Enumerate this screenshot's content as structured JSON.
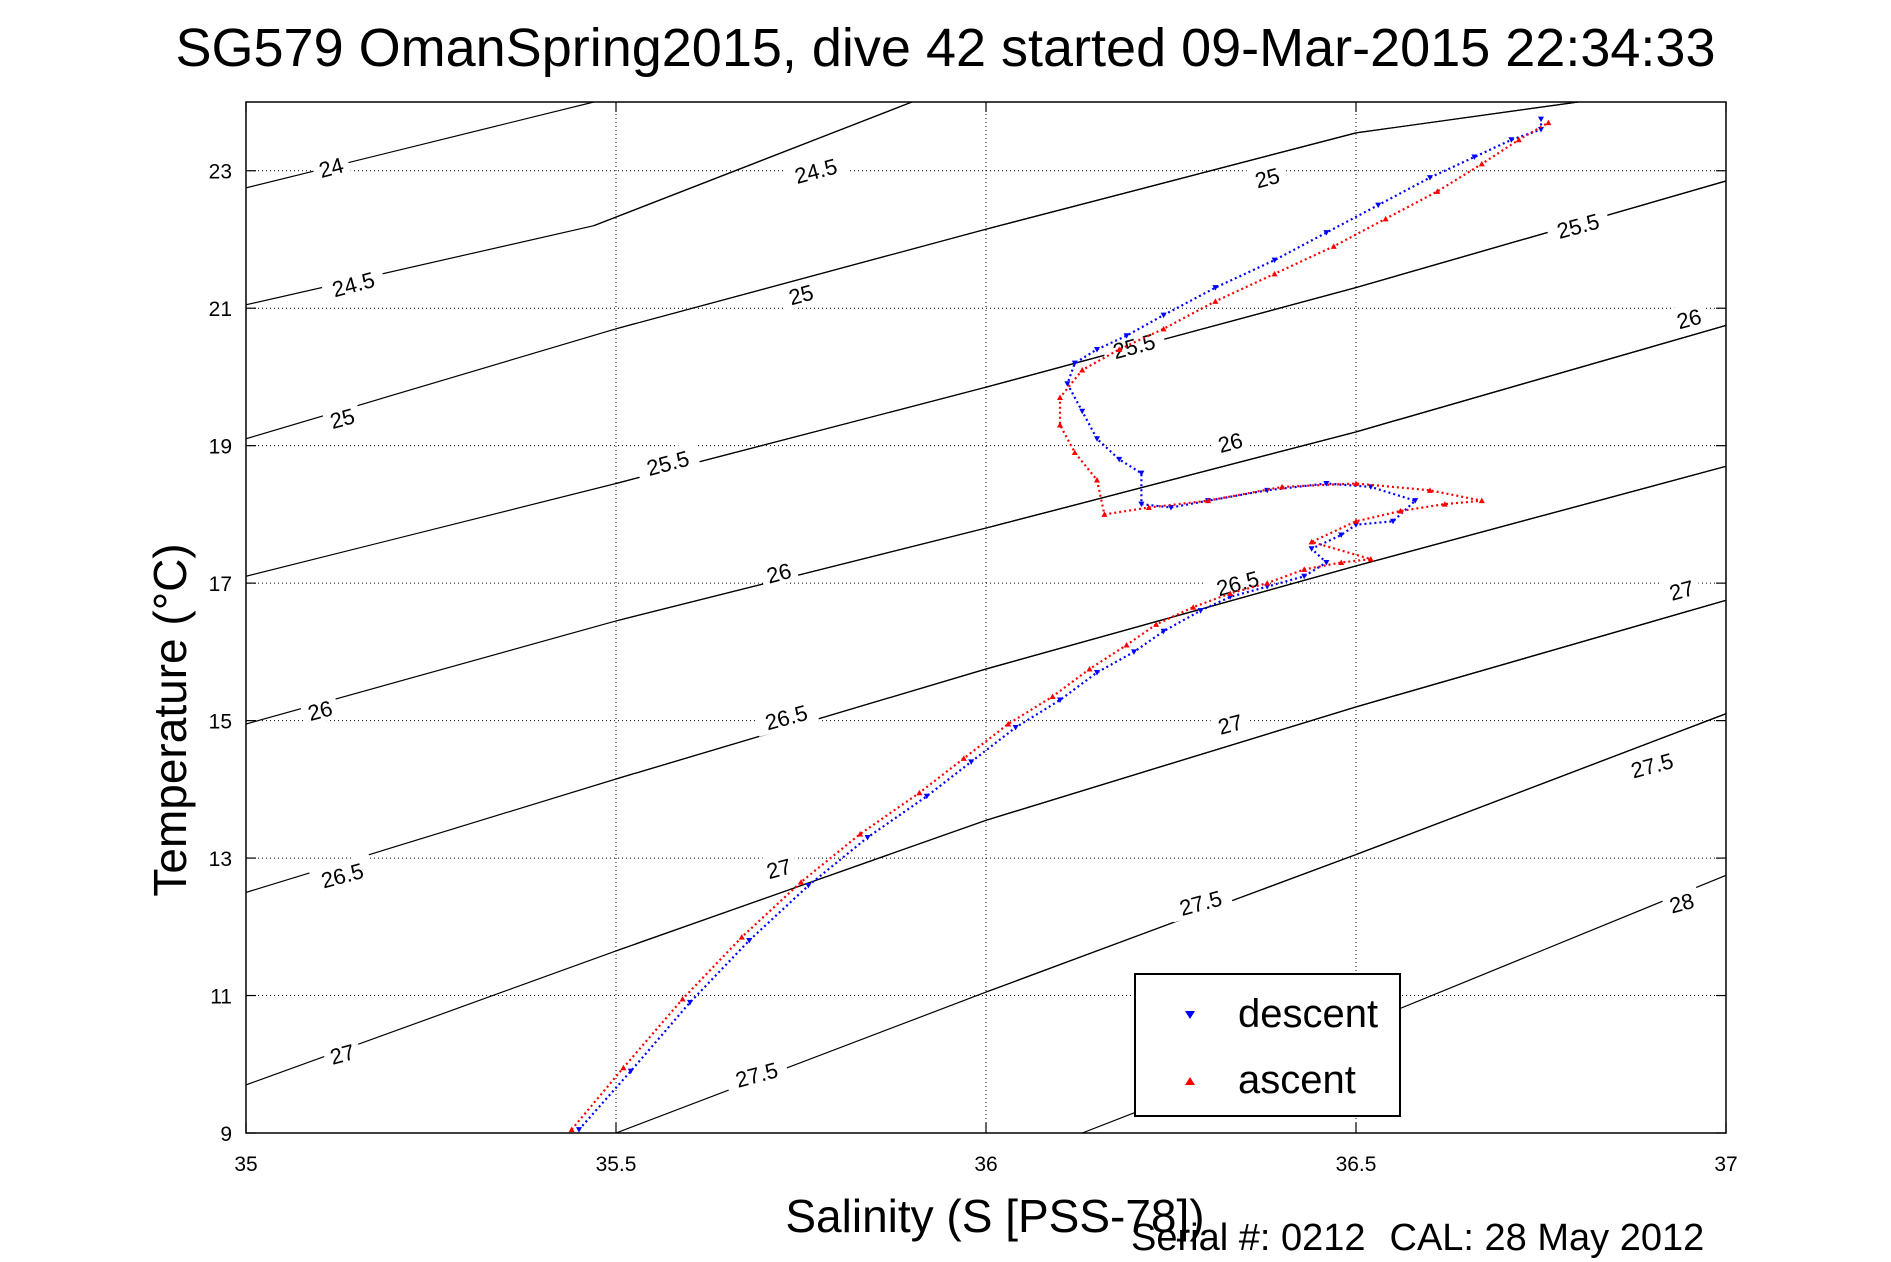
{
  "chart_data": {
    "type": "scatter",
    "title": "SG579 OmanSpring2015, dive 42 started 09-Mar-2015 22:34:33",
    "xlabel": "Salinity (S [PSS-78])",
    "ylabel": "Temperature (°C)",
    "xlim": [
      35,
      37
    ],
    "ylim": [
      9,
      24
    ],
    "x_ticks": [
      35,
      35.5,
      36,
      36.5,
      37
    ],
    "x_tick_labels": [
      "35",
      "35.5",
      "36",
      "36.5",
      "37"
    ],
    "y_ticks": [
      9,
      11,
      13,
      15,
      17,
      19,
      21,
      23
    ],
    "y_tick_labels": [
      "9",
      "11",
      "13",
      "15",
      "17",
      "19",
      "21",
      "23"
    ],
    "grid": true,
    "legend_position": "bottom-right",
    "series": [
      {
        "name": "descent",
        "color": "#0000ff",
        "marker": "triangle-down",
        "x": [
          35.45,
          35.52,
          35.6,
          35.68,
          35.76,
          35.84,
          35.92,
          35.98,
          36.04,
          36.1,
          36.15,
          36.2,
          36.24,
          36.29,
          36.33,
          36.38,
          36.43,
          36.46,
          36.44,
          36.48,
          36.5,
          36.55,
          36.58,
          36.52,
          36.46,
          36.38,
          36.3,
          36.25,
          36.21,
          36.21,
          36.18,
          36.15,
          36.13,
          36.11,
          36.12,
          36.15,
          36.19,
          36.24,
          36.31,
          36.39,
          36.46,
          36.53,
          36.6,
          36.66,
          36.71,
          36.75,
          36.75
        ],
        "y": [
          9.05,
          9.9,
          10.9,
          11.8,
          12.6,
          13.3,
          13.9,
          14.4,
          14.9,
          15.3,
          15.7,
          16.0,
          16.3,
          16.6,
          16.8,
          16.95,
          17.1,
          17.3,
          17.5,
          17.7,
          17.85,
          17.9,
          18.2,
          18.4,
          18.45,
          18.35,
          18.2,
          18.1,
          18.15,
          18.6,
          18.8,
          19.1,
          19.5,
          19.9,
          20.2,
          20.4,
          20.6,
          20.9,
          21.3,
          21.7,
          22.1,
          22.5,
          22.9,
          23.2,
          23.45,
          23.6,
          23.75
        ]
      },
      {
        "name": "ascent",
        "color": "#ff0000",
        "marker": "triangle-up",
        "x": [
          35.44,
          35.51,
          35.59,
          35.67,
          35.75,
          35.83,
          35.91,
          35.97,
          36.03,
          36.09,
          36.14,
          36.19,
          36.23,
          36.28,
          36.33,
          36.38,
          36.43,
          36.48,
          36.52,
          36.44,
          36.5,
          36.56,
          36.62,
          36.67,
          36.6,
          36.5,
          36.4,
          36.3,
          36.22,
          36.16,
          36.15,
          36.12,
          36.1,
          36.1,
          36.13,
          36.18,
          36.24,
          36.31,
          36.39,
          36.47,
          36.54,
          36.61,
          36.67,
          36.72,
          36.76
        ],
        "y": [
          9.05,
          9.95,
          10.95,
          11.85,
          12.65,
          13.35,
          13.95,
          14.45,
          14.95,
          15.35,
          15.75,
          16.1,
          16.4,
          16.65,
          16.85,
          17.0,
          17.2,
          17.3,
          17.35,
          17.6,
          17.9,
          18.05,
          18.15,
          18.2,
          18.35,
          18.45,
          18.4,
          18.2,
          18.1,
          18.0,
          18.5,
          18.9,
          19.3,
          19.7,
          20.1,
          20.4,
          20.7,
          21.1,
          21.5,
          21.9,
          22.3,
          22.7,
          23.1,
          23.45,
          23.7
        ]
      }
    ],
    "contours": [
      {
        "label": "24",
        "x": [
          35,
          35.47
        ],
        "y": [
          22.75,
          24.0
        ],
        "label_x": 35.115,
        "label_y": 23.05
      },
      {
        "label": "24.5",
        "x": [
          35,
          35.47,
          35.9
        ],
        "y": [
          21.05,
          22.2,
          24.0
        ],
        "label_x": 35.145,
        "label_y": 21.35
      },
      {
        "label": "24.5",
        "x": [
          35.47,
          35.9
        ],
        "y": [
          22.2,
          24.0
        ],
        "label_x": 35.77,
        "label_y": 23.0
      },
      {
        "label": "25",
        "x": [
          35,
          35.5,
          36,
          36.5
        ],
        "y": [
          19.1,
          20.7,
          22.15,
          23.55
        ],
        "label_x": 35.13,
        "label_y": 19.4
      },
      {
        "label": "25",
        "x": [
          35.5,
          36,
          36.5,
          36.8
        ],
        "y": [
          20.7,
          22.15,
          23.55,
          24.0
        ],
        "label_x": 35.75,
        "label_y": 21.2
      },
      {
        "label": "25",
        "x": [
          36,
          36.5,
          36.8
        ],
        "y": [
          22.15,
          23.55,
          24.0
        ],
        "label_x": 36.38,
        "label_y": 22.9
      },
      {
        "label": "25.5",
        "x": [
          35,
          35.5,
          36,
          36.5,
          37
        ],
        "y": [
          17.1,
          18.45,
          19.85,
          21.3,
          22.85
        ],
        "label_x": 35.57,
        "label_y": 18.75
      },
      {
        "label": "25.5",
        "x": [
          35.5,
          36,
          36.5,
          37
        ],
        "y": [
          18.45,
          19.85,
          21.3,
          22.85
        ],
        "label_x": 36.2,
        "label_y": 20.45
      },
      {
        "label": "25.5",
        "x": [
          36,
          36.5,
          37
        ],
        "y": [
          19.85,
          21.3,
          22.85
        ],
        "label_x": 36.8,
        "label_y": 22.2
      },
      {
        "label": "26",
        "x": [
          35,
          35.5,
          36,
          36.5,
          37
        ],
        "y": [
          14.95,
          16.45,
          17.8,
          19.2,
          20.75
        ],
        "label_x": 35.1,
        "label_y": 15.15
      },
      {
        "label": "26",
        "x": [
          35.5,
          36,
          36.5,
          37
        ],
        "y": [
          16.45,
          17.8,
          19.2,
          20.75
        ],
        "label_x": 35.72,
        "label_y": 17.15
      },
      {
        "label": "26",
        "x": [
          36,
          36.5,
          37
        ],
        "y": [
          17.8,
          19.2,
          20.75
        ],
        "label_x": 36.33,
        "label_y": 19.05
      },
      {
        "label": "26",
        "x": [
          36.5,
          37
        ],
        "y": [
          19.2,
          20.75
        ],
        "label_x": 36.95,
        "label_y": 20.85
      },
      {
        "label": "26.5",
        "x": [
          35,
          35.5,
          36,
          36.5,
          37
        ],
        "y": [
          12.5,
          14.15,
          15.75,
          17.25,
          18.7
        ],
        "label_x": 35.13,
        "label_y": 12.75
      },
      {
        "label": "26.5",
        "x": [
          35.5,
          36,
          36.5,
          37
        ],
        "y": [
          14.15,
          15.75,
          17.25,
          18.7
        ],
        "label_x": 35.73,
        "label_y": 15.05
      },
      {
        "label": "26.5",
        "x": [
          36,
          36.5,
          37
        ],
        "y": [
          15.75,
          17.25,
          18.7
        ],
        "label_x": 36.34,
        "label_y": 17.0
      },
      {
        "label": "27",
        "x": [
          35,
          35.5,
          36,
          36.5,
          37
        ],
        "y": [
          9.7,
          11.65,
          13.55,
          15.2,
          16.75
        ],
        "label_x": 35.13,
        "label_y": 10.15
      },
      {
        "label": "27",
        "x": [
          35.5,
          36,
          36.5,
          37
        ],
        "y": [
          11.65,
          13.55,
          15.2,
          16.75
        ],
        "label_x": 35.72,
        "label_y": 12.85
      },
      {
        "label": "27",
        "x": [
          36,
          36.5,
          37
        ],
        "y": [
          13.55,
          15.2,
          16.75
        ],
        "label_x": 36.33,
        "label_y": 14.95
      },
      {
        "label": "27",
        "x": [
          36.5,
          37
        ],
        "y": [
          15.2,
          16.75
        ],
        "label_x": 36.94,
        "label_y": 16.9
      },
      {
        "label": "27.5",
        "x": [
          35.5,
          36,
          36.5,
          37
        ],
        "y": [
          9.0,
          11.05,
          13.05,
          15.1
        ],
        "label_x": 35.69,
        "label_y": 9.85
      },
      {
        "label": "27.5",
        "x": [
          36,
          36.5,
          37
        ],
        "y": [
          11.05,
          13.05,
          15.1
        ],
        "label_x": 36.29,
        "label_y": 12.35
      },
      {
        "label": "27.5",
        "x": [
          36.5,
          37
        ],
        "y": [
          13.05,
          15.1
        ],
        "label_x": 36.9,
        "label_y": 14.35
      },
      {
        "label": "28",
        "x": [
          36.13,
          36.5,
          37
        ],
        "y": [
          9.0,
          10.55,
          12.75
        ],
        "label_x": 36.94,
        "label_y": 12.35
      }
    ]
  },
  "footer": {
    "serial": "Serial #: 0212",
    "cal": "CAL: 28 May 2012"
  }
}
